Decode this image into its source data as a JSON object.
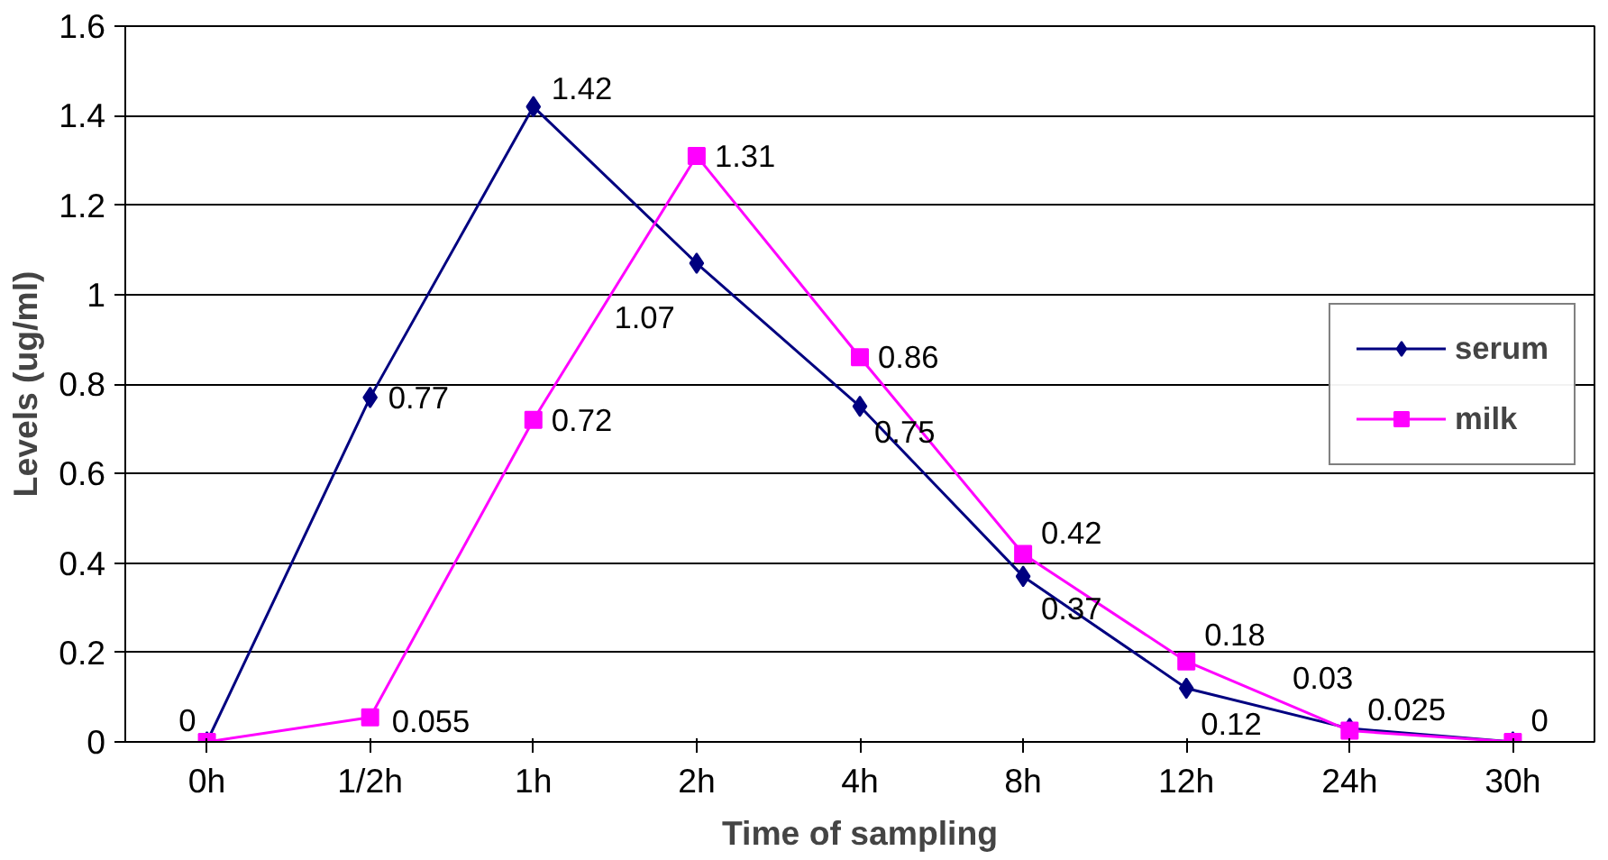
{
  "chart_data": {
    "type": "line",
    "xlabel": "Time of sampling",
    "ylabel": "Levels (ug/ml)",
    "categories": [
      "0h",
      "1/2h",
      "1h",
      "2h",
      "4h",
      "8h",
      "12h",
      "24h",
      "30h"
    ],
    "series": [
      {
        "name": "serum",
        "color": "#000080",
        "marker": "diamond",
        "values": [
          0,
          0.77,
          1.42,
          1.07,
          0.75,
          0.37,
          0.12,
          0.03,
          0
        ],
        "value_labels": [
          null,
          "0.77",
          "1.42",
          "1.07",
          "0.75",
          "0.37",
          "0.12",
          "0.03",
          null
        ]
      },
      {
        "name": "milk",
        "color": "#ff00ff",
        "marker": "square",
        "values": [
          0,
          0.055,
          0.72,
          1.31,
          0.86,
          0.42,
          0.18,
          0.025,
          0
        ],
        "value_labels": [
          "0",
          "0.055",
          "0.72",
          "1.31",
          "0.86",
          "0.42",
          "0.18",
          "0.025",
          "0"
        ]
      }
    ],
    "ylim": [
      0,
      1.6
    ],
    "yticks": [
      0,
      0.2,
      0.4,
      0.6,
      0.8,
      1,
      1.2,
      1.4,
      1.6
    ],
    "grid": "y",
    "legend": "right"
  }
}
